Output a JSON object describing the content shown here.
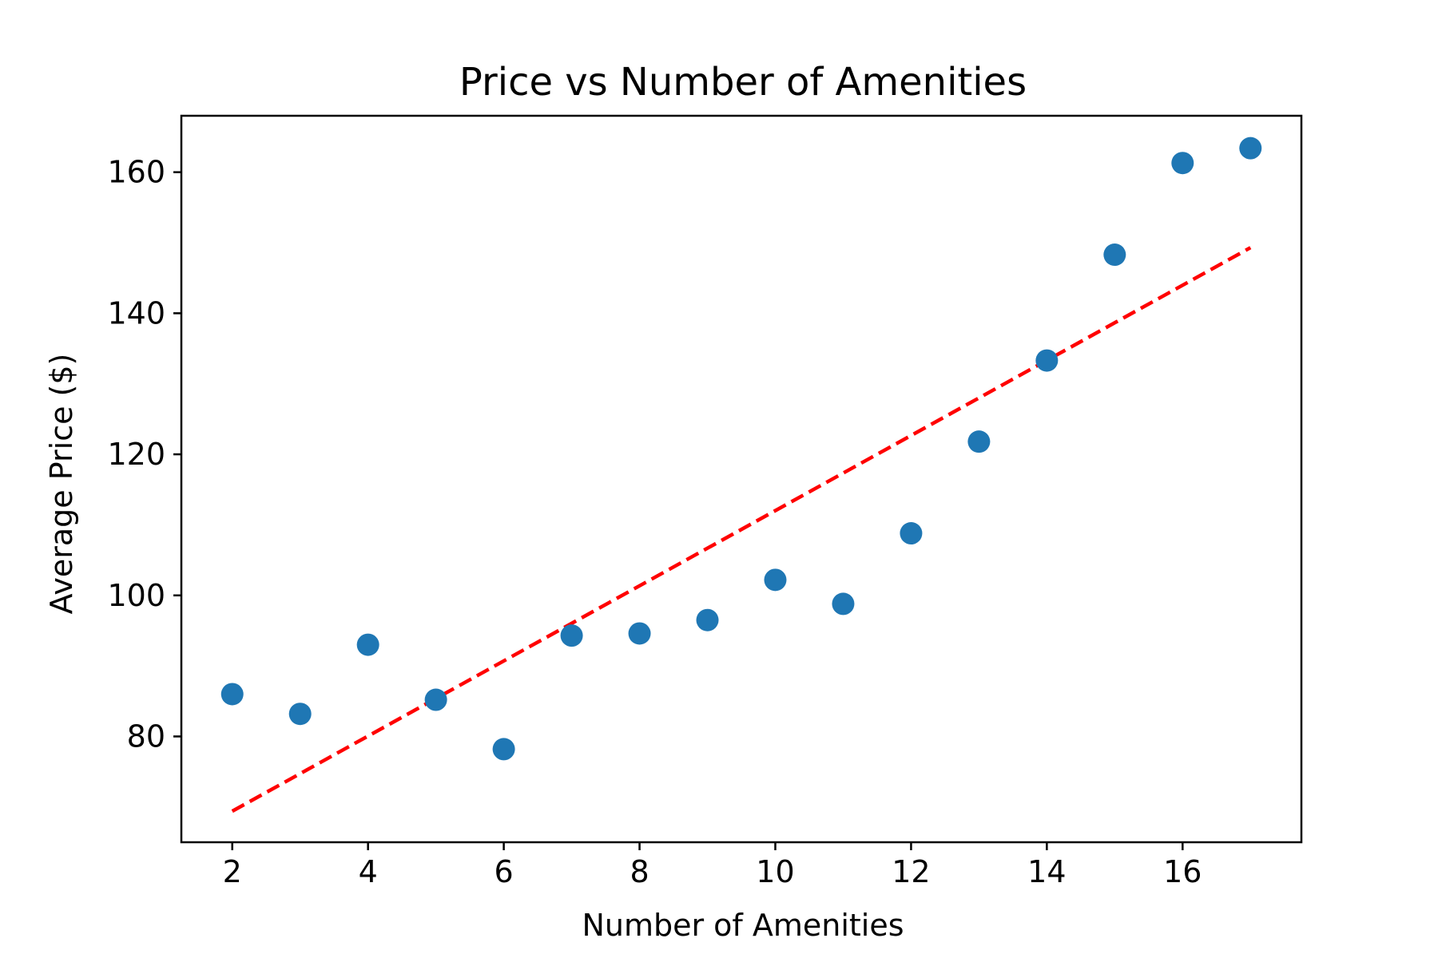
{
  "chart_data": {
    "type": "scatter",
    "title": "Price vs Number of Amenities",
    "xlabel": "Number of Amenities",
    "ylabel": "Average Price ($)",
    "xlim": [
      1.25,
      17.75
    ],
    "ylim": [
      65,
      168
    ],
    "xticks": [
      2,
      4,
      6,
      8,
      10,
      12,
      14,
      16
    ],
    "yticks": [
      80,
      100,
      120,
      140,
      160
    ],
    "grid": false,
    "series": [
      {
        "type": "scatter",
        "color": "#1f77b4",
        "points": [
          {
            "x": 2,
            "y": 86
          },
          {
            "x": 3,
            "y": 83.2
          },
          {
            "x": 4,
            "y": 93
          },
          {
            "x": 5,
            "y": 85.2
          },
          {
            "x": 6,
            "y": 78.2
          },
          {
            "x": 7,
            "y": 94.3
          },
          {
            "x": 8,
            "y": 94.6
          },
          {
            "x": 9,
            "y": 96.5
          },
          {
            "x": 10,
            "y": 102.2
          },
          {
            "x": 11,
            "y": 98.8
          },
          {
            "x": 12,
            "y": 108.8
          },
          {
            "x": 13,
            "y": 121.8
          },
          {
            "x": 14,
            "y": 133.3
          },
          {
            "x": 15,
            "y": 148.3
          },
          {
            "x": 16,
            "y": 161.3
          },
          {
            "x": 17,
            "y": 163.4
          }
        ]
      },
      {
        "type": "line",
        "style": "dashed",
        "color": "#ff0000",
        "points": [
          {
            "x": 2,
            "y": 69.4
          },
          {
            "x": 17,
            "y": 149.3
          }
        ]
      }
    ]
  }
}
